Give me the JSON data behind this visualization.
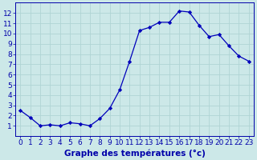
{
  "hours": [
    0,
    1,
    2,
    3,
    4,
    5,
    6,
    7,
    8,
    9,
    10,
    11,
    12,
    13,
    14,
    15,
    16,
    17,
    18,
    19,
    20,
    21,
    22,
    23
  ],
  "temperatures": [
    2.5,
    1.8,
    1.0,
    1.1,
    1.0,
    1.3,
    1.2,
    1.0,
    1.7,
    2.7,
    4.5,
    7.3,
    10.3,
    10.6,
    11.1,
    11.1,
    12.2,
    12.1,
    10.8,
    9.7,
    9.9,
    8.8,
    7.8,
    7.3
  ],
  "line_color": "#0000bb",
  "marker": "D",
  "marker_size": 2.2,
  "bg_color": "#cce8e8",
  "grid_color": "#b0d4d4",
  "axis_color": "#0000aa",
  "xlabel": "Graphe des températures (°c)",
  "xlabel_fontsize": 7.5,
  "tick_fontsize": 6.5,
  "ylim": [
    0,
    13
  ],
  "xlim": [
    -0.5,
    23.5
  ],
  "yticks": [
    1,
    2,
    3,
    4,
    5,
    6,
    7,
    8,
    9,
    10,
    11,
    12
  ],
  "xticks": [
    0,
    1,
    2,
    3,
    4,
    5,
    6,
    7,
    8,
    9,
    10,
    11,
    12,
    13,
    14,
    15,
    16,
    17,
    18,
    19,
    20,
    21,
    22,
    23
  ]
}
